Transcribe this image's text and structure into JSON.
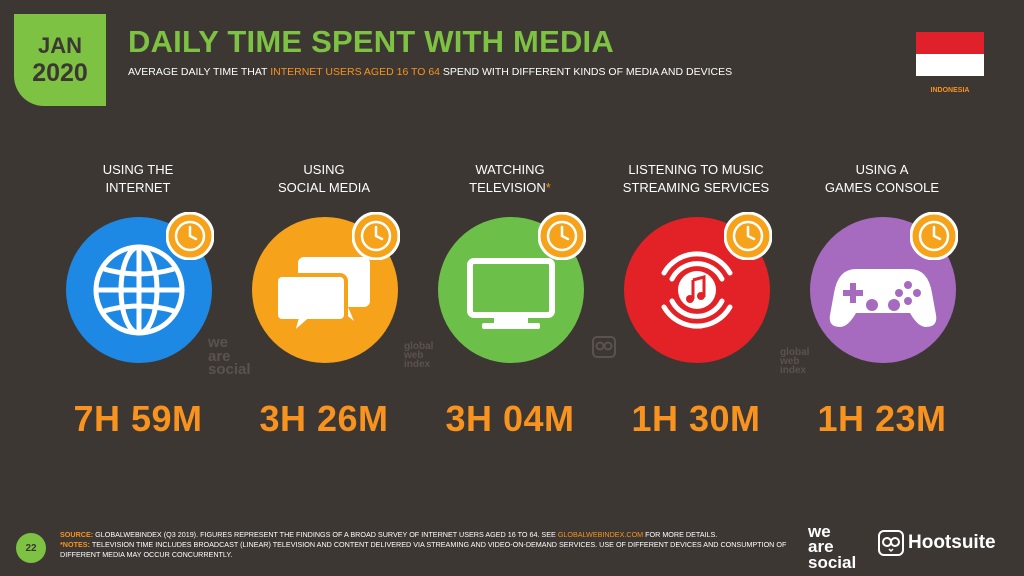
{
  "header": {
    "month": "JAN",
    "year": "2020",
    "title": "DAILY TIME SPENT WITH MEDIA",
    "subtitle_pre": "AVERAGE DAILY TIME THAT ",
    "subtitle_highlight": "INTERNET USERS AGED 16 TO 64",
    "subtitle_post": " SPEND WITH DIFFERENT KINDS OF MEDIA AND DEVICES",
    "country": "INDONESIA"
  },
  "colors": {
    "background": "#3d3733",
    "green": "#7dc242",
    "orange": "#f7931e",
    "blue": "#1e88e5",
    "amber": "#f7a21b",
    "lime": "#6cc04a",
    "red": "#e32227",
    "purple": "#a66bbf"
  },
  "metrics": [
    {
      "label_line1": "USING THE",
      "label_line2": "INTERNET",
      "label_star": "",
      "value": "7H 59M",
      "icon": "globe-icon",
      "color": "#1e88e5"
    },
    {
      "label_line1": "USING",
      "label_line2": "SOCIAL MEDIA",
      "label_star": "",
      "value": "3H 26M",
      "icon": "chat-bubbles-icon",
      "color": "#f7a21b"
    },
    {
      "label_line1": "WATCHING",
      "label_line2": "TELEVISION",
      "label_star": "*",
      "value": "3H 04M",
      "icon": "television-icon",
      "color": "#6cc04a"
    },
    {
      "label_line1": "LISTENING TO MUSIC",
      "label_line2": "STREAMING SERVICES",
      "label_star": "",
      "value": "1H 30M",
      "icon": "music-streaming-icon",
      "color": "#e32227"
    },
    {
      "label_line1": "USING A",
      "label_line2": "GAMES CONSOLE",
      "label_star": "",
      "value": "1H 23M",
      "icon": "gamepad-icon",
      "color": "#a66bbf"
    }
  ],
  "watermarks": {
    "was_line1": "we",
    "was_line2": "are",
    "was_line3": "social",
    "gwi_line1": "global",
    "gwi_line2": "web",
    "gwi_line3": "index"
  },
  "footer": {
    "page_number": "22",
    "source_label": "SOURCE:",
    "source_text": " GLOBALWEBINDEX (Q3 2019). FIGURES REPRESENT THE FINDINGS OF A BROAD SURVEY OF INTERNET USERS AGED 16 TO 64. SEE ",
    "source_link": "GLOBALWEBINDEX.COM",
    "source_end": " FOR MORE DETAILS.",
    "notes_label": "*NOTES:",
    "notes_text": " TELEVISION TIME INCLUDES BROADCAST (LINEAR) TELEVISION AND CONTENT DELIVERED VIA STREAMING AND VIDEO-ON-DEMAND SERVICES. USE OF DIFFERENT DEVICES AND CONSUMPTION OF DIFFERENT MEDIA MAY OCCUR CONCURRENTLY.",
    "brand_was_line1": "we",
    "brand_was_line2": "are",
    "brand_was_line3": "social",
    "brand_hootsuite": "Hootsuite"
  }
}
